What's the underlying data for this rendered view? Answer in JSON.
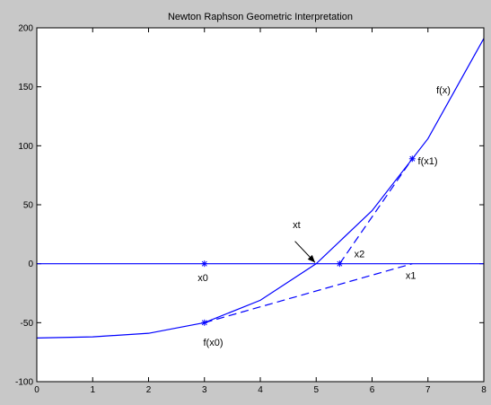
{
  "chart_data": {
    "type": "line",
    "title": "Newton Raphson Geometric Interpretation",
    "xlabel": "",
    "ylabel": "",
    "xlim": [
      0,
      8
    ],
    "ylim": [
      -100,
      200
    ],
    "xticks": [
      0,
      1,
      2,
      3,
      4,
      5,
      6,
      7,
      8
    ],
    "yticks": [
      -100,
      -50,
      0,
      50,
      100,
      150,
      200
    ],
    "grid": false,
    "colors": {
      "line": "#0000ff",
      "axes_bg": "#ffffff",
      "figure_bg": "#c8c8c8"
    },
    "series": [
      {
        "name": "f(x)",
        "style": "solid",
        "x": [
          0,
          1,
          2,
          3,
          4,
          5,
          6,
          7,
          8
        ],
        "y": [
          -63,
          -62,
          -59,
          -50,
          -31,
          0,
          45,
          106,
          191
        ]
      },
      {
        "style": "solid",
        "x": [
          0,
          8
        ],
        "y": [
          0,
          0
        ]
      },
      {
        "style": "dashed",
        "x": [
          3,
          6.72
        ],
        "y": [
          -50,
          0
        ]
      },
      {
        "style": "dashed",
        "x": [
          5.42,
          6.72
        ],
        "y": [
          0,
          89
        ]
      }
    ],
    "markers": [
      {
        "x": 3,
        "y": 0
      },
      {
        "x": 3,
        "y": -50
      },
      {
        "x": 6.72,
        "y": 89
      },
      {
        "x": 5.42,
        "y": 0
      }
    ],
    "annotations": [
      {
        "text": "f(x)",
        "x": 7.15,
        "y": 147
      },
      {
        "text": "f(x1)",
        "x": 6.82,
        "y": 87
      },
      {
        "text": "xt",
        "x": 4.58,
        "y": 33
      },
      {
        "text": "x2",
        "x": 5.68,
        "y": 8
      },
      {
        "text": "x0",
        "x": 2.88,
        "y": -12
      },
      {
        "text": "x1",
        "x": 6.6,
        "y": -10
      },
      {
        "text": "f(x0)",
        "x": 2.98,
        "y": -67
      }
    ],
    "arrow": {
      "from": [
        4.62,
        19
      ],
      "to": [
        4.98,
        1
      ]
    }
  }
}
